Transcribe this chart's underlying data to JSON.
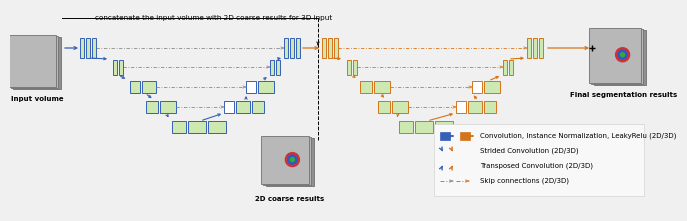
{
  "title_text": "concatenate the input volume with 2D coarse results for 3D input",
  "input_label": "Input volume",
  "output_label": "Final segmentation results",
  "center_label": "2D coarse results",
  "legend_items": [
    "Convolution, Instance Normalization, LeakyRelu (2D/3D)",
    "Strided Convolution (2D/3D)",
    "Transposed Convolution (2D/3D)",
    "Skip connections (2D/3D)"
  ],
  "blue": "#3560b8",
  "orange": "#d4741a",
  "green_fill": "#cde8b0",
  "white_fill": "#ffffff",
  "bg_color": "#f0f0f0",
  "gray": "#888888"
}
